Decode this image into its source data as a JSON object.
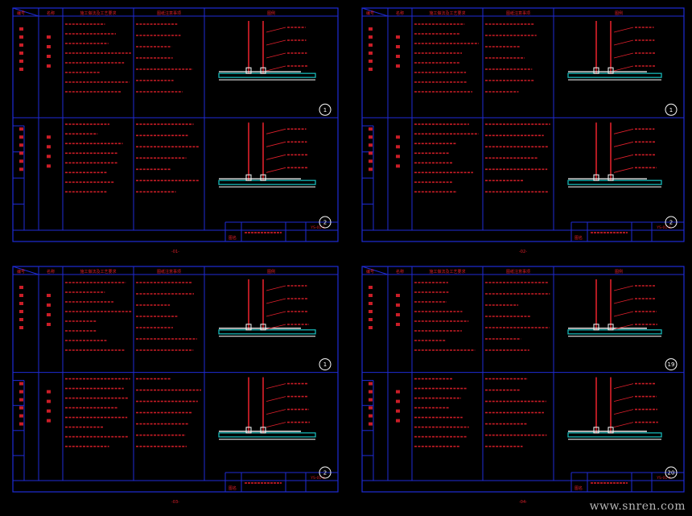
{
  "colors": {
    "background": "#000000",
    "frame": "#1f2bd6",
    "text": "#e0202b",
    "detail_cyan": "#18c4c4",
    "detail_white": "#ffffff",
    "watermark": "#b5b5b5"
  },
  "watermark": "www.snren.com",
  "sheets": [
    {
      "header": [
        "编号",
        "名称",
        "施工做法及工艺要求",
        "图纸注意事项",
        "图例"
      ],
      "circle_top": "1",
      "circle_bottom": "2",
      "footer_left": "图名",
      "footer_code": "YS-01-1",
      "page_mark": "-01-"
    },
    {
      "header": [
        "编号",
        "名称",
        "施工做法及工艺要求",
        "图纸注意事项",
        "图例"
      ],
      "circle_top": "1",
      "circle_bottom": "2",
      "footer_left": "图名",
      "footer_code": "YS-01-2",
      "page_mark": "-02-"
    },
    {
      "header": [
        "编号",
        "名称",
        "施工做法及工艺要求",
        "图纸注意事项",
        "图例"
      ],
      "circle_top": "1",
      "circle_bottom": "2",
      "footer_left": "图名",
      "footer_code": "YS-01-3",
      "page_mark": "-03-"
    },
    {
      "header": [
        "编号",
        "名称",
        "施工做法及工艺要求",
        "图纸注意事项",
        "图例"
      ],
      "circle_top": "19",
      "circle_bottom": "20",
      "footer_left": "图名",
      "footer_code": "YS-01-4",
      "page_mark": "-04-"
    }
  ]
}
